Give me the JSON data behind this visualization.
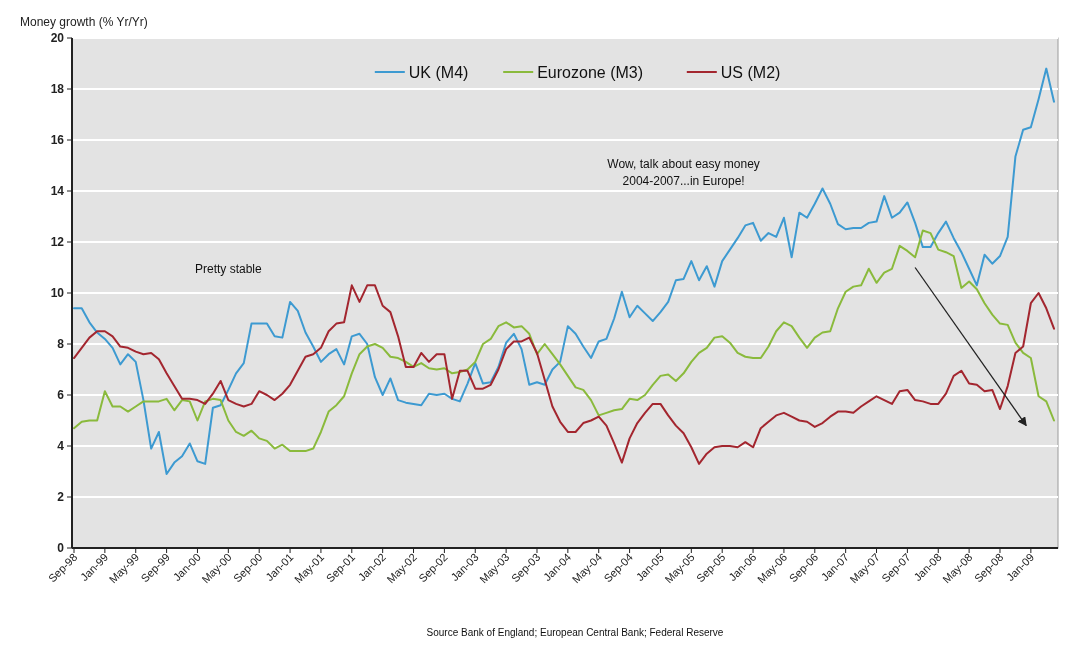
{
  "chart_data": {
    "type": "line",
    "ylabel": "Money growth (% Yr/Yr)",
    "categories": [
      "Sep-98",
      null,
      null,
      null,
      "Jan-99",
      null,
      null,
      null,
      "May-99",
      null,
      null,
      null,
      "Sep-99",
      null,
      null,
      null,
      "Jan-00",
      null,
      null,
      null,
      "May-00",
      null,
      null,
      null,
      "Sep-00",
      null,
      null,
      null,
      "Jan-01",
      null,
      null,
      null,
      "May-01",
      null,
      null,
      null,
      "Sep-01",
      null,
      null,
      null,
      "Jan-02",
      null,
      null,
      null,
      "May-02",
      null,
      null,
      null,
      "Sep-02",
      null,
      null,
      null,
      "Jan-03",
      null,
      null,
      null,
      "May-03",
      null,
      null,
      null,
      "Sep-03",
      null,
      null,
      null,
      "Jan-04",
      null,
      null,
      null,
      "May-04",
      null,
      null,
      null,
      "Sep-04",
      null,
      null,
      null,
      "Jan-05",
      null,
      null,
      null,
      "May-05",
      null,
      null,
      null,
      "Sep-05",
      null,
      null,
      null,
      "Jan-06",
      null,
      null,
      null,
      "May-06",
      null,
      null,
      null,
      "Sep-06",
      null,
      null,
      null,
      "Jan-07",
      null,
      null,
      null,
      "May-07",
      null,
      null,
      null,
      "Sep-07",
      null,
      null,
      null,
      "Jan-08",
      null,
      null,
      null,
      "May-08",
      null,
      null,
      null,
      "Sep-08",
      null,
      null,
      null,
      "Jan-09",
      null,
      null,
      null
    ],
    "series": [
      {
        "name": "UK (M4)",
        "color": "#3d9ad1",
        "values": [
          9.4,
          9.4,
          8.85,
          8.45,
          8.2,
          7.85,
          7.2,
          7.6,
          7.3,
          5.8,
          3.9,
          4.55,
          2.9,
          3.35,
          3.6,
          4.1,
          3.4,
          3.3,
          5.5,
          5.6,
          6.2,
          6.85,
          7.25,
          8.8,
          8.8,
          8.8,
          8.3,
          8.25,
          9.65,
          9.3,
          8.45,
          7.9,
          7.3,
          7.6,
          7.8,
          7.2,
          8.3,
          8.4,
          8.0,
          6.7,
          6.0,
          6.65,
          5.8,
          5.7,
          5.65,
          5.6,
          6.05,
          6.0,
          6.05,
          5.85,
          5.75,
          6.45,
          7.25,
          6.45,
          6.5,
          7.1,
          8.05,
          8.4,
          7.8,
          6.4,
          6.5,
          6.4,
          7.0,
          7.3,
          8.7,
          8.4,
          7.9,
          7.45,
          8.1,
          8.2,
          9.0,
          10.05,
          9.05,
          9.5,
          9.2,
          8.9,
          9.25,
          9.65,
          10.5,
          10.55,
          11.25,
          10.5,
          11.05,
          10.25,
          11.25,
          11.7,
          12.15,
          12.65,
          12.75,
          12.05,
          12.35,
          12.2,
          12.95,
          11.4,
          13.15,
          12.95,
          13.5,
          14.1,
          13.5,
          12.7,
          12.5,
          12.55,
          12.55,
          12.75,
          12.8,
          13.8,
          12.95,
          13.15,
          13.55,
          12.75,
          11.8,
          11.8,
          12.35,
          12.8,
          12.15,
          11.6,
          10.95,
          10.3,
          11.5,
          11.15,
          11.45,
          12.2,
          15.35,
          16.4,
          16.5,
          17.6,
          18.8,
          17.5
        ]
      },
      {
        "name": "Eurozone (M3)",
        "color": "#8aba3c",
        "values": [
          4.7,
          4.95,
          5.0,
          5.0,
          6.15,
          5.55,
          5.55,
          5.35,
          5.55,
          5.75,
          5.75,
          5.75,
          5.85,
          5.4,
          5.8,
          5.75,
          5.0,
          5.75,
          5.85,
          5.8,
          5.0,
          4.55,
          4.4,
          4.6,
          4.3,
          4.2,
          3.9,
          4.05,
          3.8,
          3.8,
          3.8,
          3.9,
          4.55,
          5.35,
          5.6,
          5.95,
          6.85,
          7.6,
          7.9,
          8.0,
          7.85,
          7.5,
          7.45,
          7.3,
          7.1,
          7.25,
          7.05,
          7.0,
          7.05,
          6.85,
          6.9,
          7.0,
          7.3,
          8.0,
          8.2,
          8.7,
          8.85,
          8.65,
          8.7,
          8.4,
          7.6,
          8.0,
          7.6,
          7.2,
          6.75,
          6.3,
          6.2,
          5.8,
          5.2,
          5.3,
          5.4,
          5.45,
          5.85,
          5.8,
          6.0,
          6.4,
          6.75,
          6.8,
          6.55,
          6.85,
          7.3,
          7.65,
          7.85,
          8.25,
          8.3,
          8.05,
          7.65,
          7.5,
          7.45,
          7.45,
          7.9,
          8.5,
          8.85,
          8.7,
          8.25,
          7.85,
          8.25,
          8.45,
          8.5,
          9.4,
          10.05,
          10.25,
          10.3,
          10.95,
          10.4,
          10.8,
          10.95,
          11.85,
          11.65,
          11.4,
          12.45,
          12.35,
          11.7,
          11.6,
          11.45,
          10.2,
          10.45,
          10.15,
          9.6,
          9.15,
          8.8,
          8.75,
          8.05,
          7.65,
          7.45,
          5.95,
          5.75,
          5.0
        ]
      },
      {
        "name": "US (M2)",
        "color": "#a3262f",
        "values": [
          7.45,
          7.85,
          8.25,
          8.5,
          8.5,
          8.3,
          7.9,
          7.85,
          7.7,
          7.6,
          7.65,
          7.4,
          6.85,
          6.35,
          5.85,
          5.85,
          5.8,
          5.65,
          6.05,
          6.55,
          5.8,
          5.65,
          5.55,
          5.65,
          6.15,
          6.0,
          5.8,
          6.05,
          6.4,
          6.95,
          7.5,
          7.6,
          7.85,
          8.5,
          8.8,
          8.85,
          10.3,
          9.65,
          10.3,
          10.3,
          9.5,
          9.25,
          8.3,
          7.1,
          7.1,
          7.65,
          7.3,
          7.6,
          7.6,
          5.85,
          6.95,
          6.95,
          6.25,
          6.25,
          6.4,
          7.0,
          7.8,
          8.1,
          8.1,
          8.25,
          7.65,
          6.6,
          5.55,
          4.95,
          4.55,
          4.55,
          4.9,
          5.0,
          5.15,
          4.8,
          4.1,
          3.35,
          4.3,
          4.9,
          5.3,
          5.65,
          5.65,
          5.2,
          4.8,
          4.5,
          3.95,
          3.3,
          3.7,
          3.95,
          4.0,
          4.0,
          3.95,
          4.15,
          3.95,
          4.7,
          4.95,
          5.2,
          5.3,
          5.15,
          5.0,
          4.95,
          4.75,
          4.9,
          5.15,
          5.35,
          5.35,
          5.3,
          5.55,
          5.75,
          5.95,
          5.8,
          5.65,
          6.15,
          6.2,
          5.8,
          5.75,
          5.65,
          5.65,
          6.05,
          6.75,
          6.95,
          6.45,
          6.4,
          6.15,
          6.2,
          5.45,
          6.35,
          7.65,
          7.9,
          9.6,
          10.0,
          9.4,
          8.6
        ]
      }
    ],
    "ylim": [
      0,
      20
    ],
    "yticks": [
      0,
      2,
      4,
      6,
      8,
      10,
      12,
      14,
      16,
      18,
      20
    ],
    "grid": "y",
    "legend": "top",
    "annotations": [
      "Pretty stable",
      "Wow, talk about easy money 2004-2007...in Europe!",
      "Source Bank of England; European Central Bank; Federal Reserve"
    ]
  }
}
